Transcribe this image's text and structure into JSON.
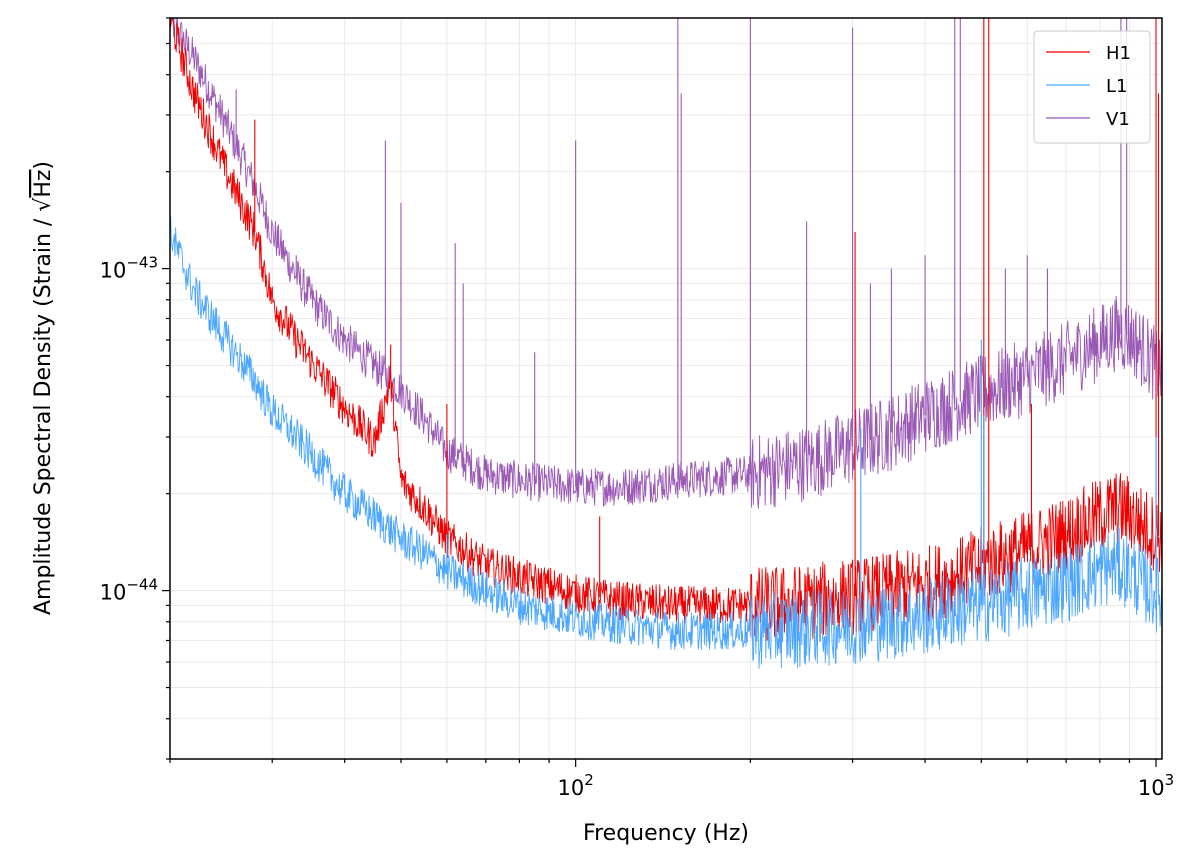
{
  "chart_data": {
    "type": "line",
    "title": "",
    "xlabel": "Frequency (Hz)",
    "ylabel_prefix": "Amplitude Spectral Density (Strain / ",
    "ylabel_sqrt": "√",
    "ylabel_unit": "Hz",
    "ylabel_suffix": ")",
    "x_scale": "log",
    "y_scale": "log",
    "xlim": [
      20,
      1024
    ],
    "ylim": [
      3e-45,
      6e-43
    ],
    "x_ticks": [
      {
        "value": 100,
        "base": "10",
        "exp": "2"
      },
      {
        "value": 1000,
        "base": "10",
        "exp": "3"
      }
    ],
    "y_ticks": [
      {
        "value": 1e-44,
        "base": "10",
        "exp": "−44"
      },
      {
        "value": 1e-43,
        "base": "10",
        "exp": "−43"
      }
    ],
    "grid": "minor",
    "legend_position": "top-right",
    "series": [
      {
        "name": "H1",
        "color": "#ee0000",
        "x": [
          20,
          22,
          25,
          28,
          30,
          33,
          36,
          40,
          45,
          48,
          50,
          55,
          60,
          70,
          80,
          100,
          120,
          150,
          200,
          250,
          300,
          350,
          400,
          450,
          500,
          600,
          700,
          800,
          850,
          900,
          950,
          1000,
          1024
        ],
        "y": [
          6e-43,
          3.5e-43,
          2e-43,
          1.3e-43,
          8e-44,
          6e-44,
          4.8e-44,
          3.7e-44,
          2.9e-44,
          4.5e-44,
          2.2e-44,
          1.8e-44,
          1.45e-44,
          1.2e-44,
          1.1e-44,
          9.8e-45,
          9.3e-45,
          9e-45,
          9e-45,
          9.2e-45,
          9.6e-45,
          1e-44,
          1.05e-44,
          1.1e-44,
          1.2e-44,
          1.35e-44,
          1.5e-44,
          1.7e-44,
          1.8e-44,
          1.75e-44,
          1.6e-44,
          1.5e-44,
          1.45e-44
        ],
        "peaks": [
          {
            "f": 28,
            "a": 2.9e-43
          },
          {
            "f": 48,
            "a": 5.8e-44
          },
          {
            "f": 60,
            "a": 3.8e-44
          },
          {
            "f": 110,
            "a": 1.7e-44
          },
          {
            "f": 303,
            "a": 1.3e-43
          },
          {
            "f": 505,
            "a": 6e-43
          },
          {
            "f": 515,
            "a": 6e-43
          },
          {
            "f": 610,
            "a": 3.8e-44
          },
          {
            "f": 1000,
            "a": 6e-43
          },
          {
            "f": 1010,
            "a": 3.5e-43
          }
        ]
      },
      {
        "name": "L1",
        "color": "#4ba6ff",
        "x": [
          20,
          22,
          25,
          28,
          30,
          33,
          36,
          40,
          45,
          50,
          55,
          60,
          70,
          80,
          100,
          120,
          150,
          200,
          250,
          300,
          350,
          400,
          450,
          500,
          600,
          700,
          800,
          850,
          900,
          950,
          1000,
          1024
        ],
        "y": [
          1.3e-43,
          8.5e-44,
          6e-44,
          4.5e-44,
          3.6e-44,
          3e-44,
          2.5e-44,
          2e-44,
          1.7e-44,
          1.45e-44,
          1.3e-44,
          1.15e-44,
          1e-44,
          9e-45,
          8.2e-45,
          7.8e-45,
          7.5e-45,
          7.5e-45,
          7.6e-45,
          7.8e-45,
          8e-45,
          8.3e-45,
          8.7e-45,
          9e-45,
          9.8e-45,
          1.05e-44,
          1.15e-44,
          1.2e-44,
          1.15e-44,
          1.05e-44,
          9.8e-45,
          9.5e-45
        ],
        "peaks": [
          {
            "f": 40,
            "a": 2.3e-44
          },
          {
            "f": 60,
            "a": 1.5e-44
          },
          {
            "f": 310,
            "a": 3.2e-44
          },
          {
            "f": 500,
            "a": 6e-44
          },
          {
            "f": 505,
            "a": 3.5e-44
          },
          {
            "f": 1000,
            "a": 3e-44
          }
        ]
      },
      {
        "name": "V1",
        "color": "#9b59b6",
        "x": [
          20,
          22,
          25,
          28,
          30,
          33,
          36,
          40,
          45,
          50,
          55,
          60,
          70,
          80,
          100,
          120,
          150,
          200,
          250,
          300,
          350,
          400,
          450,
          500,
          600,
          700,
          800,
          850,
          900,
          950,
          1000,
          1024
        ],
        "y": [
          6e-43,
          4.5e-43,
          2.8e-43,
          1.8e-43,
          1.3e-43,
          9.5e-44,
          7.5e-44,
          6e-44,
          5e-44,
          4.2e-44,
          3.4e-44,
          2.7e-44,
          2.3e-44,
          2.2e-44,
          2.1e-44,
          2.1e-44,
          2.2e-44,
          2.3e-44,
          2.5e-44,
          2.8e-44,
          3.1e-44,
          3.5e-44,
          3.8e-44,
          4.1e-44,
          4.6e-44,
          5.2e-44,
          5.9e-44,
          6.3e-44,
          6.2e-44,
          5.6e-44,
          5e-44,
          4.8e-44
        ],
        "peaks": [
          {
            "f": 26,
            "a": 3.6e-43
          },
          {
            "f": 33,
            "a": 1.1e-43
          },
          {
            "f": 47,
            "a": 2.5e-43
          },
          {
            "f": 50,
            "a": 1.6e-43
          },
          {
            "f": 62,
            "a": 1.2e-43
          },
          {
            "f": 64,
            "a": 9e-44
          },
          {
            "f": 85,
            "a": 5.5e-44
          },
          {
            "f": 100,
            "a": 2.5e-43
          },
          {
            "f": 150,
            "a": 6e-43
          },
          {
            "f": 152,
            "a": 3.5e-43
          },
          {
            "f": 200,
            "a": 6e-43
          },
          {
            "f": 250,
            "a": 1.4e-43
          },
          {
            "f": 300,
            "a": 5.6e-43
          },
          {
            "f": 322,
            "a": 9e-44
          },
          {
            "f": 350,
            "a": 1e-43
          },
          {
            "f": 400,
            "a": 1.1e-43
          },
          {
            "f": 450,
            "a": 6e-43
          },
          {
            "f": 460,
            "a": 6e-43
          },
          {
            "f": 550,
            "a": 1e-43
          },
          {
            "f": 600,
            "a": 1.1e-43
          },
          {
            "f": 650,
            "a": 1e-43
          },
          {
            "f": 870,
            "a": 6e-43
          },
          {
            "f": 890,
            "a": 6e-43
          }
        ]
      }
    ]
  }
}
